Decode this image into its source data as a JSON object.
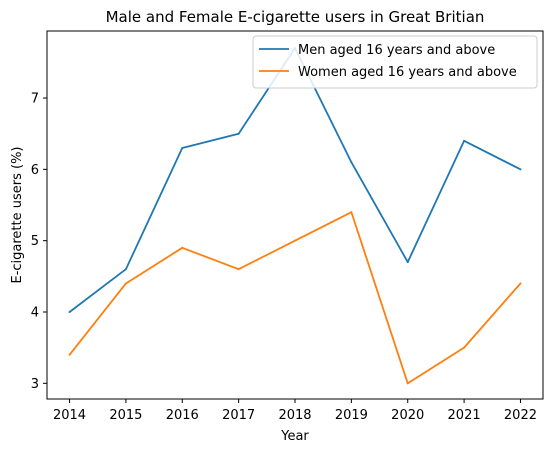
{
  "chart_data": {
    "type": "line",
    "title": "Male and Female E-cigarette users in Great Britian",
    "xlabel": "Year",
    "ylabel": "E-cigarette users (%)",
    "x": [
      2014,
      2015,
      2016,
      2017,
      2018,
      2019,
      2020,
      2021,
      2022
    ],
    "x_ticks": [
      "2014",
      "2015",
      "2016",
      "2017",
      "2018",
      "2019",
      "2020",
      "2021",
      "2022"
    ],
    "y_ticks": [
      "3",
      "4",
      "5",
      "6",
      "7"
    ],
    "ylim": [
      2.78,
      7.94
    ],
    "grid": false,
    "legend_position": "top-right",
    "series": [
      {
        "name": "Men aged 16 years and above",
        "color": "#1f77b4",
        "values": [
          4.0,
          4.6,
          6.3,
          6.5,
          7.7,
          6.1,
          4.7,
          6.4,
          6.0
        ]
      },
      {
        "name": "Women aged 16 years and above",
        "color": "#ff7f0e",
        "values": [
          3.4,
          4.4,
          4.9,
          4.6,
          5.0,
          5.4,
          3.0,
          3.5,
          4.4
        ]
      }
    ]
  }
}
